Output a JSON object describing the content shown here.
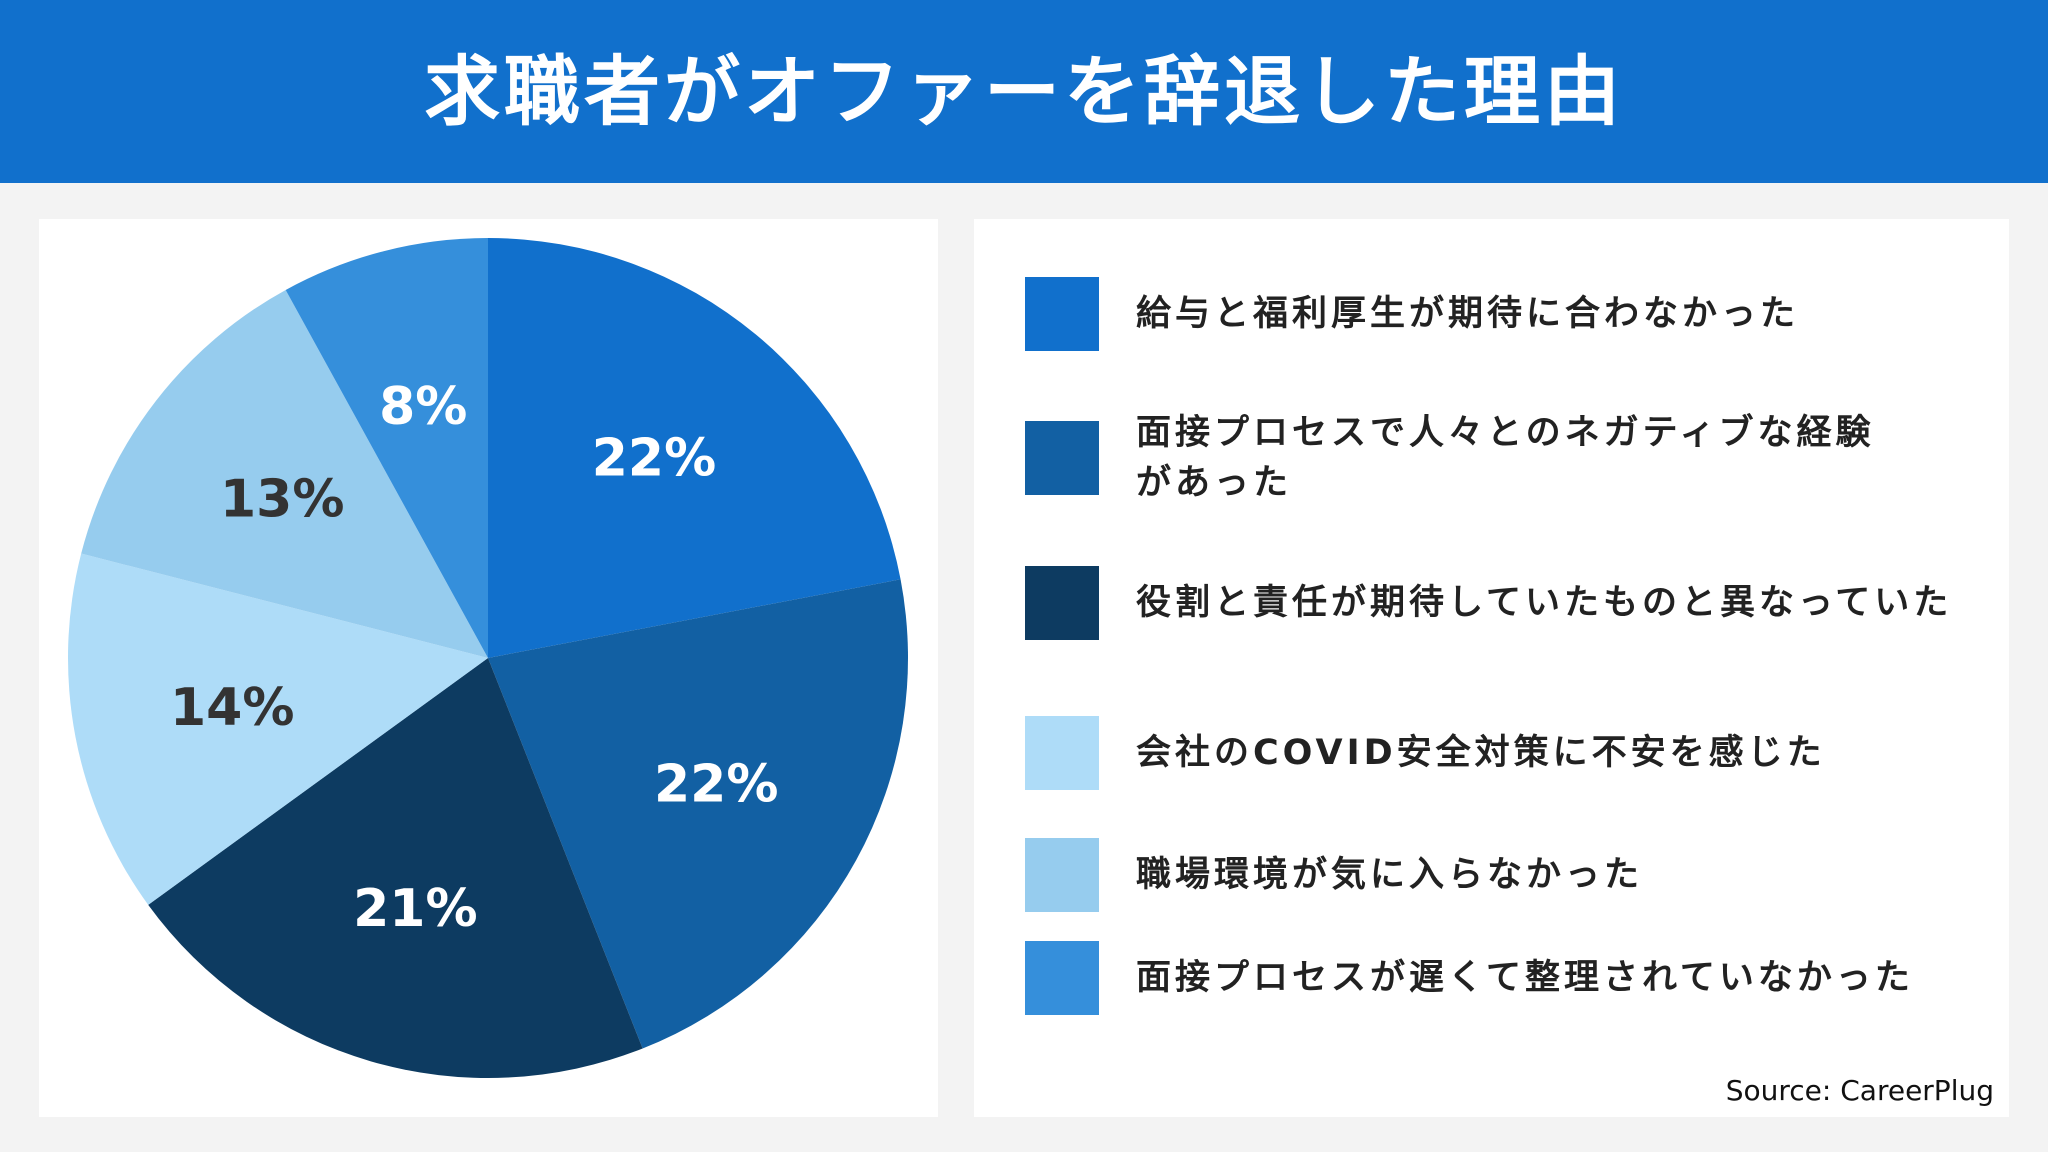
{
  "chart_data": {
    "type": "pie",
    "title": "求職者がオファーを辞退した理由",
    "categories": [
      "給与と福利厚生が期待に合わなかった",
      "面接プロセスで人々とのネガティブな経験\nがあった",
      "役割と責任が期待していたものと異なっていた",
      "会社のCOVID安全対策に不安を感じた",
      "職場環境が気に入らなかった",
      "面接プロセスが遅くて整理されていなかった"
    ],
    "values": [
      22,
      22,
      21,
      14,
      13,
      8
    ],
    "value_labels": [
      "22%",
      "22%",
      "21%",
      "14%",
      "13%",
      "8%"
    ],
    "colors": [
      "#1170cc",
      "#1260a3",
      "#0d3b61",
      "#aedcf8",
      "#96ccee",
      "#358fdb"
    ],
    "source": "Source: CareerPlug"
  }
}
